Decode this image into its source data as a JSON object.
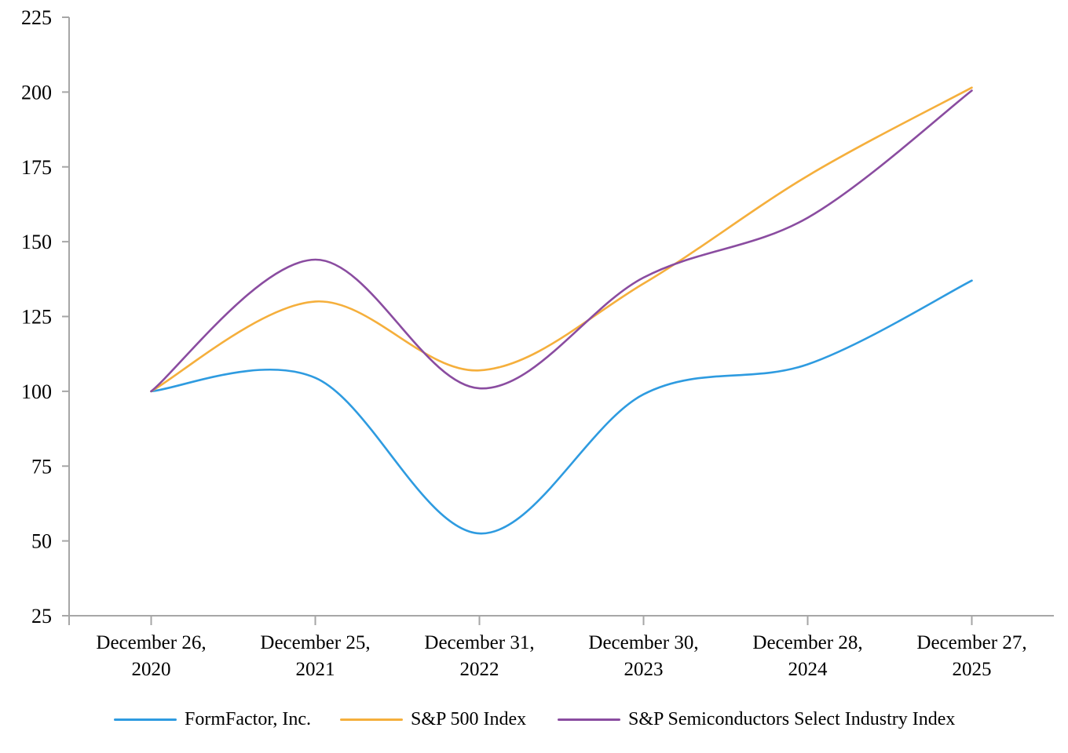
{
  "chart_data": {
    "type": "line",
    "title": "",
    "xlabel": "",
    "ylabel": "",
    "grid": false,
    "smooth": true,
    "legend_position": "bottom",
    "background": "#FFFFFF",
    "axis_color": "#A6A6A6",
    "text_color": "#000000",
    "y_axis": {
      "min": 25,
      "max": 225,
      "step": 25,
      "ticks": [
        25,
        50,
        75,
        100,
        125,
        150,
        175,
        200,
        225
      ]
    },
    "categories": [
      {
        "line1": "December 26,",
        "line2": "2020"
      },
      {
        "line1": "December 25,",
        "line2": "2021"
      },
      {
        "line1": "December 31,",
        "line2": "2022"
      },
      {
        "line1": "December 30,",
        "line2": "2023"
      },
      {
        "line1": "December 28,",
        "line2": "2024"
      },
      {
        "line1": "December 27,",
        "line2": "2025"
      }
    ],
    "series": [
      {
        "name": "FormFactor, Inc.",
        "color": "#2E9BE0",
        "values": [
          100,
          104.5,
          52.5,
          99,
          109,
          137
        ]
      },
      {
        "name": "S&P 500 Index",
        "color": "#F5AF3C",
        "values": [
          100,
          130,
          107,
          136,
          172,
          201.5
        ]
      },
      {
        "name": "S&P Semiconductors Select Industry Index",
        "color": "#8A4CA0",
        "values": [
          100,
          144,
          101,
          138,
          158,
          200.5
        ]
      }
    ]
  }
}
